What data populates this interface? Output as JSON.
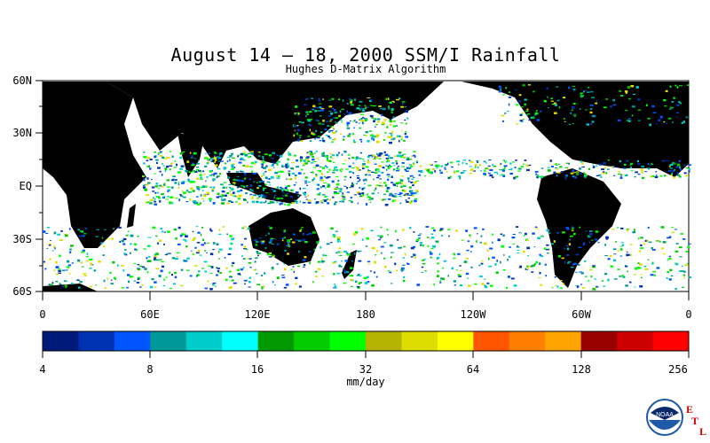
{
  "title": "August 14 – 18, 2000 SSM/I Rainfall",
  "subtitle": "Hughes D-Matrix Algorithm",
  "lat_labels": [
    "60N",
    "30N",
    "EQ",
    "30S",
    "60S"
  ],
  "lon_labels": [
    "0",
    "60E",
    "120E",
    "180",
    "120W",
    "60W",
    "0"
  ],
  "colorbar": {
    "colors": [
      "#001a7a",
      "#0033b3",
      "#0055ff",
      "#009999",
      "#00cccc",
      "#00ffff",
      "#009900",
      "#00cc00",
      "#00ff00",
      "#b3b300",
      "#dddd00",
      "#ffff00",
      "#ff5500",
      "#ff7f00",
      "#ffa500",
      "#990000",
      "#cc0000",
      "#ff0000"
    ],
    "tick_labels": [
      "4",
      "8",
      "16",
      "32",
      "64",
      "128",
      "256"
    ]
  },
  "units": "mm/day",
  "logo": {
    "name": "NOAA",
    "letters": [
      "E",
      "T",
      "L"
    ]
  }
}
